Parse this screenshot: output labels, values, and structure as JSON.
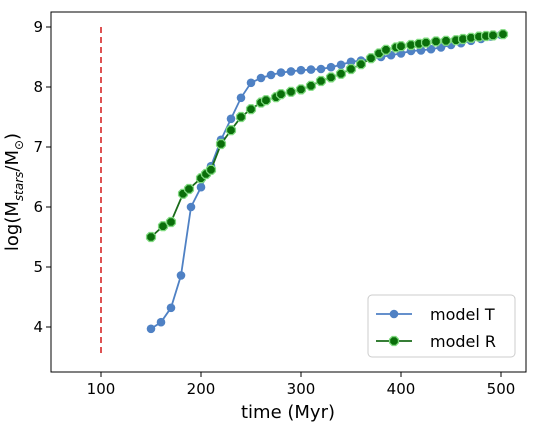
{
  "chart_data": {
    "type": "line",
    "xlabel": "time (Myr)",
    "ylabel": "log(M_{stars}/M_{⊙})",
    "xlim": [
      50,
      525
    ],
    "ylim": [
      3.25,
      9.25
    ],
    "xticks": [
      100,
      200,
      300,
      400,
      500
    ],
    "yticks": [
      4,
      5,
      6,
      7,
      8,
      9
    ],
    "grid": false,
    "legend_position": "lower-right",
    "vline": {
      "x": 100,
      "y_range": [
        3.5,
        9.0
      ],
      "color": "#d62728",
      "style": "dashed"
    },
    "series": [
      {
        "name": "model T",
        "color": "#4f81c4",
        "marker": "circle",
        "x": [
          150,
          160,
          170,
          180,
          190,
          200,
          210,
          220,
          230,
          240,
          250,
          260,
          270,
          280,
          290,
          300,
          310,
          320,
          330,
          340,
          350,
          360,
          370,
          380,
          390,
          400,
          410,
          420,
          430,
          440,
          450,
          460,
          470,
          480,
          490,
          500
        ],
        "y": [
          3.97,
          4.08,
          4.32,
          4.86,
          6.0,
          6.33,
          6.68,
          7.12,
          7.47,
          7.82,
          8.07,
          8.15,
          8.2,
          8.24,
          8.26,
          8.28,
          8.29,
          8.3,
          8.33,
          8.37,
          8.42,
          8.44,
          8.47,
          8.5,
          8.53,
          8.56,
          8.6,
          8.61,
          8.63,
          8.66,
          8.7,
          8.73,
          8.77,
          8.8,
          8.84,
          8.87
        ]
      },
      {
        "name": "model R",
        "color": "#1a6b1a",
        "marker": "octagon",
        "x": [
          150,
          162,
          170,
          182,
          188,
          200,
          205,
          210,
          220,
          230,
          240,
          250,
          260,
          265,
          275,
          280,
          290,
          300,
          310,
          320,
          330,
          340,
          350,
          360,
          370,
          378,
          385,
          395,
          400,
          410,
          418,
          425,
          435,
          445,
          455,
          462,
          470,
          478,
          485,
          492,
          502
        ],
        "y": [
          5.5,
          5.68,
          5.75,
          6.22,
          6.3,
          6.48,
          6.55,
          6.62,
          7.05,
          7.28,
          7.5,
          7.63,
          7.74,
          7.78,
          7.83,
          7.88,
          7.92,
          7.96,
          8.02,
          8.1,
          8.16,
          8.22,
          8.3,
          8.38,
          8.48,
          8.56,
          8.62,
          8.66,
          8.68,
          8.7,
          8.72,
          8.74,
          8.76,
          8.77,
          8.78,
          8.8,
          8.82,
          8.84,
          8.85,
          8.86,
          8.88
        ]
      }
    ]
  }
}
